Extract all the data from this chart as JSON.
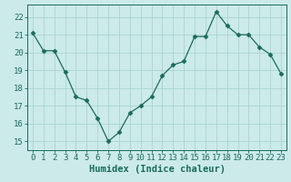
{
  "x": [
    0,
    1,
    2,
    3,
    4,
    5,
    6,
    7,
    8,
    9,
    10,
    11,
    12,
    13,
    14,
    15,
    16,
    17,
    18,
    19,
    20,
    21,
    22,
    23
  ],
  "y": [
    21.1,
    20.1,
    20.1,
    18.9,
    17.5,
    17.3,
    16.3,
    15.0,
    15.5,
    16.6,
    17.0,
    17.5,
    18.7,
    19.3,
    19.5,
    20.9,
    20.9,
    22.3,
    21.5,
    21.0,
    21.0,
    20.3,
    19.9,
    18.8
  ],
  "xlabel": "Humidex (Indice chaleur)",
  "ylim": [
    14.5,
    22.7
  ],
  "xlim": [
    -0.5,
    23.5
  ],
  "yticks": [
    15,
    16,
    17,
    18,
    19,
    20,
    21,
    22
  ],
  "xticks": [
    0,
    1,
    2,
    3,
    4,
    5,
    6,
    7,
    8,
    9,
    10,
    11,
    12,
    13,
    14,
    15,
    16,
    17,
    18,
    19,
    20,
    21,
    22,
    23
  ],
  "line_color": "#1a6b5a",
  "marker": "D",
  "marker_size": 2.5,
  "bg_color": "#cceaea",
  "grid_color": "#aad4d4",
  "tick_label_size": 6.5,
  "xlabel_size": 7.5
}
